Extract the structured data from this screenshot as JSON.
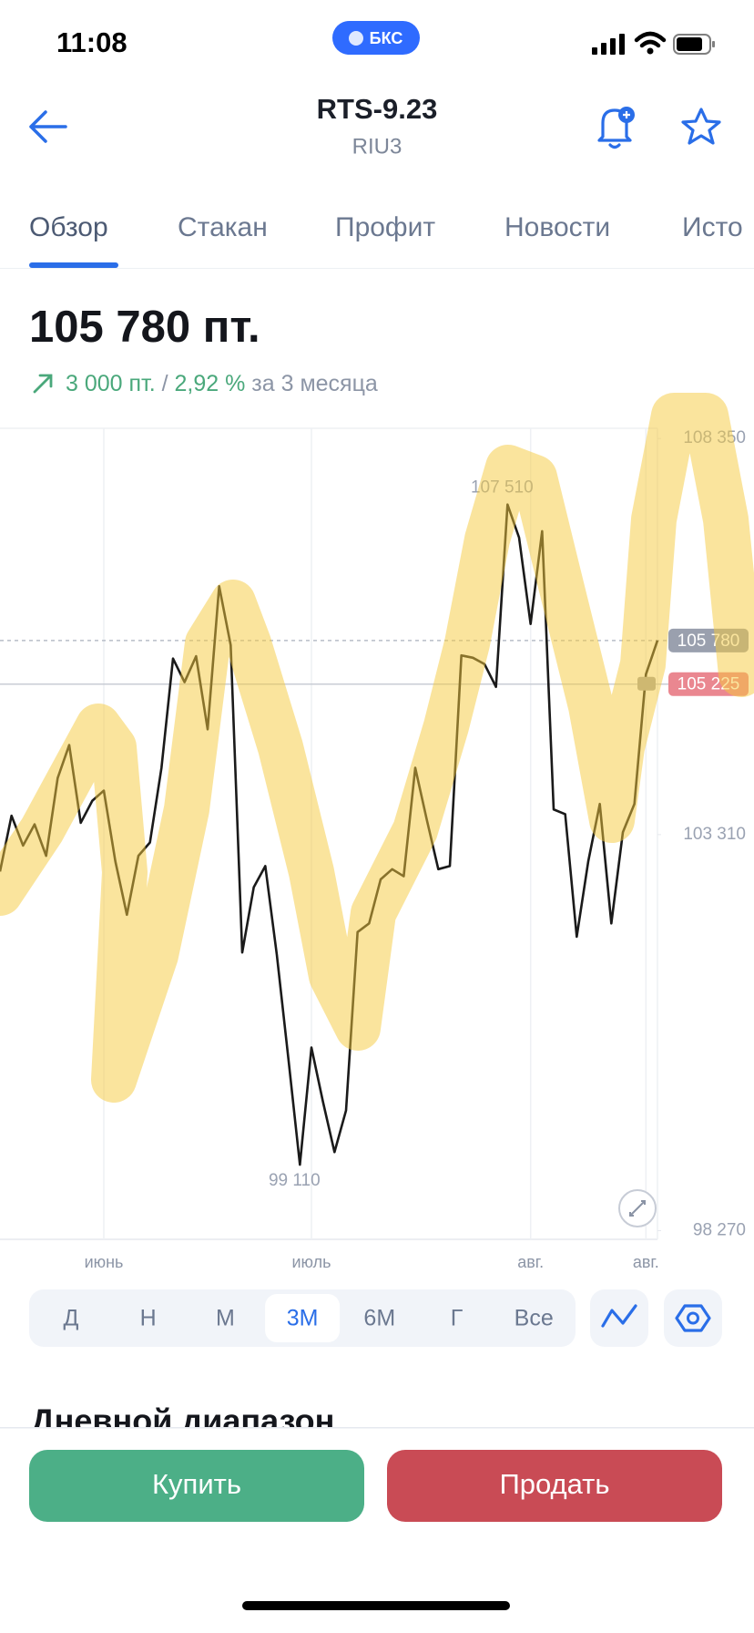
{
  "status_bar": {
    "time": "11:08",
    "badge": "БКС"
  },
  "header": {
    "title": "RTS-9.23",
    "subtitle": "RIU3"
  },
  "tabs": [
    "Обзор",
    "Стакан",
    "Профит",
    "Новости",
    "Исто"
  ],
  "quote": {
    "price": "105 780 пт.",
    "change_points": "3 000 пт.",
    "separator": " / ",
    "change_percent": "2,92 %",
    "period": " за 3 месяца"
  },
  "chart_data": {
    "type": "line",
    "categories": [
      null,
      null,
      null,
      null,
      null,
      null,
      null,
      null,
      null,
      "июнь",
      null,
      null,
      null,
      null,
      null,
      null,
      null,
      null,
      null,
      null,
      null,
      null,
      null,
      null,
      null,
      null,
      null,
      "июль",
      null,
      null,
      null,
      null,
      null,
      null,
      null,
      null,
      null,
      null,
      null,
      null,
      null,
      null,
      null,
      null,
      null,
      null,
      "авг.",
      null,
      null,
      null,
      null,
      null,
      null,
      null,
      null,
      null,
      "авг.",
      null
    ],
    "series": [
      {
        "color": "#1a1a1a",
        "values": [
          102840,
          103550,
          103170,
          103440,
          103040,
          104030,
          104450,
          103460,
          103740,
          103870,
          102970,
          102290,
          103040,
          103210,
          104160,
          105550,
          105250,
          105580,
          104650,
          106470,
          105720,
          101810,
          102640,
          102910,
          101780,
          100460,
          99110,
          100600,
          99910,
          99270,
          99800,
          102070,
          102180,
          102740,
          102870,
          102780,
          104160,
          103500,
          102870,
          102910,
          105590,
          105560,
          105480,
          105190,
          107510,
          107090,
          105990,
          107170,
          103630,
          103570,
          102010,
          102970,
          103700,
          102180,
          103340,
          103700,
          105350,
          105780
        ]
      }
    ],
    "ylim": [
      98160,
      108480
    ],
    "yticks": [
      {
        "value": 98270,
        "label": "98 270"
      },
      {
        "value": 103310,
        "label": "103 310"
      },
      {
        "value": 108350,
        "label": "108 350"
      }
    ],
    "price_lines": [
      {
        "value": 105780,
        "label": "105 780",
        "color": "#9aa0ae",
        "style": "dashed"
      },
      {
        "value": 105225,
        "label": "105 225",
        "color": "#ea8790",
        "style": "solid"
      }
    ],
    "annotations": [
      {
        "value": 107510,
        "label": "107 510"
      },
      {
        "value": 99110,
        "label": "99 110"
      }
    ]
  },
  "periods": [
    "Д",
    "Н",
    "М",
    "3М",
    "6М",
    "Г",
    "Все"
  ],
  "selected_period": 3,
  "section_heading": "Дневной диапазон",
  "buttons": {
    "buy": "Купить",
    "sell": "Продать"
  }
}
